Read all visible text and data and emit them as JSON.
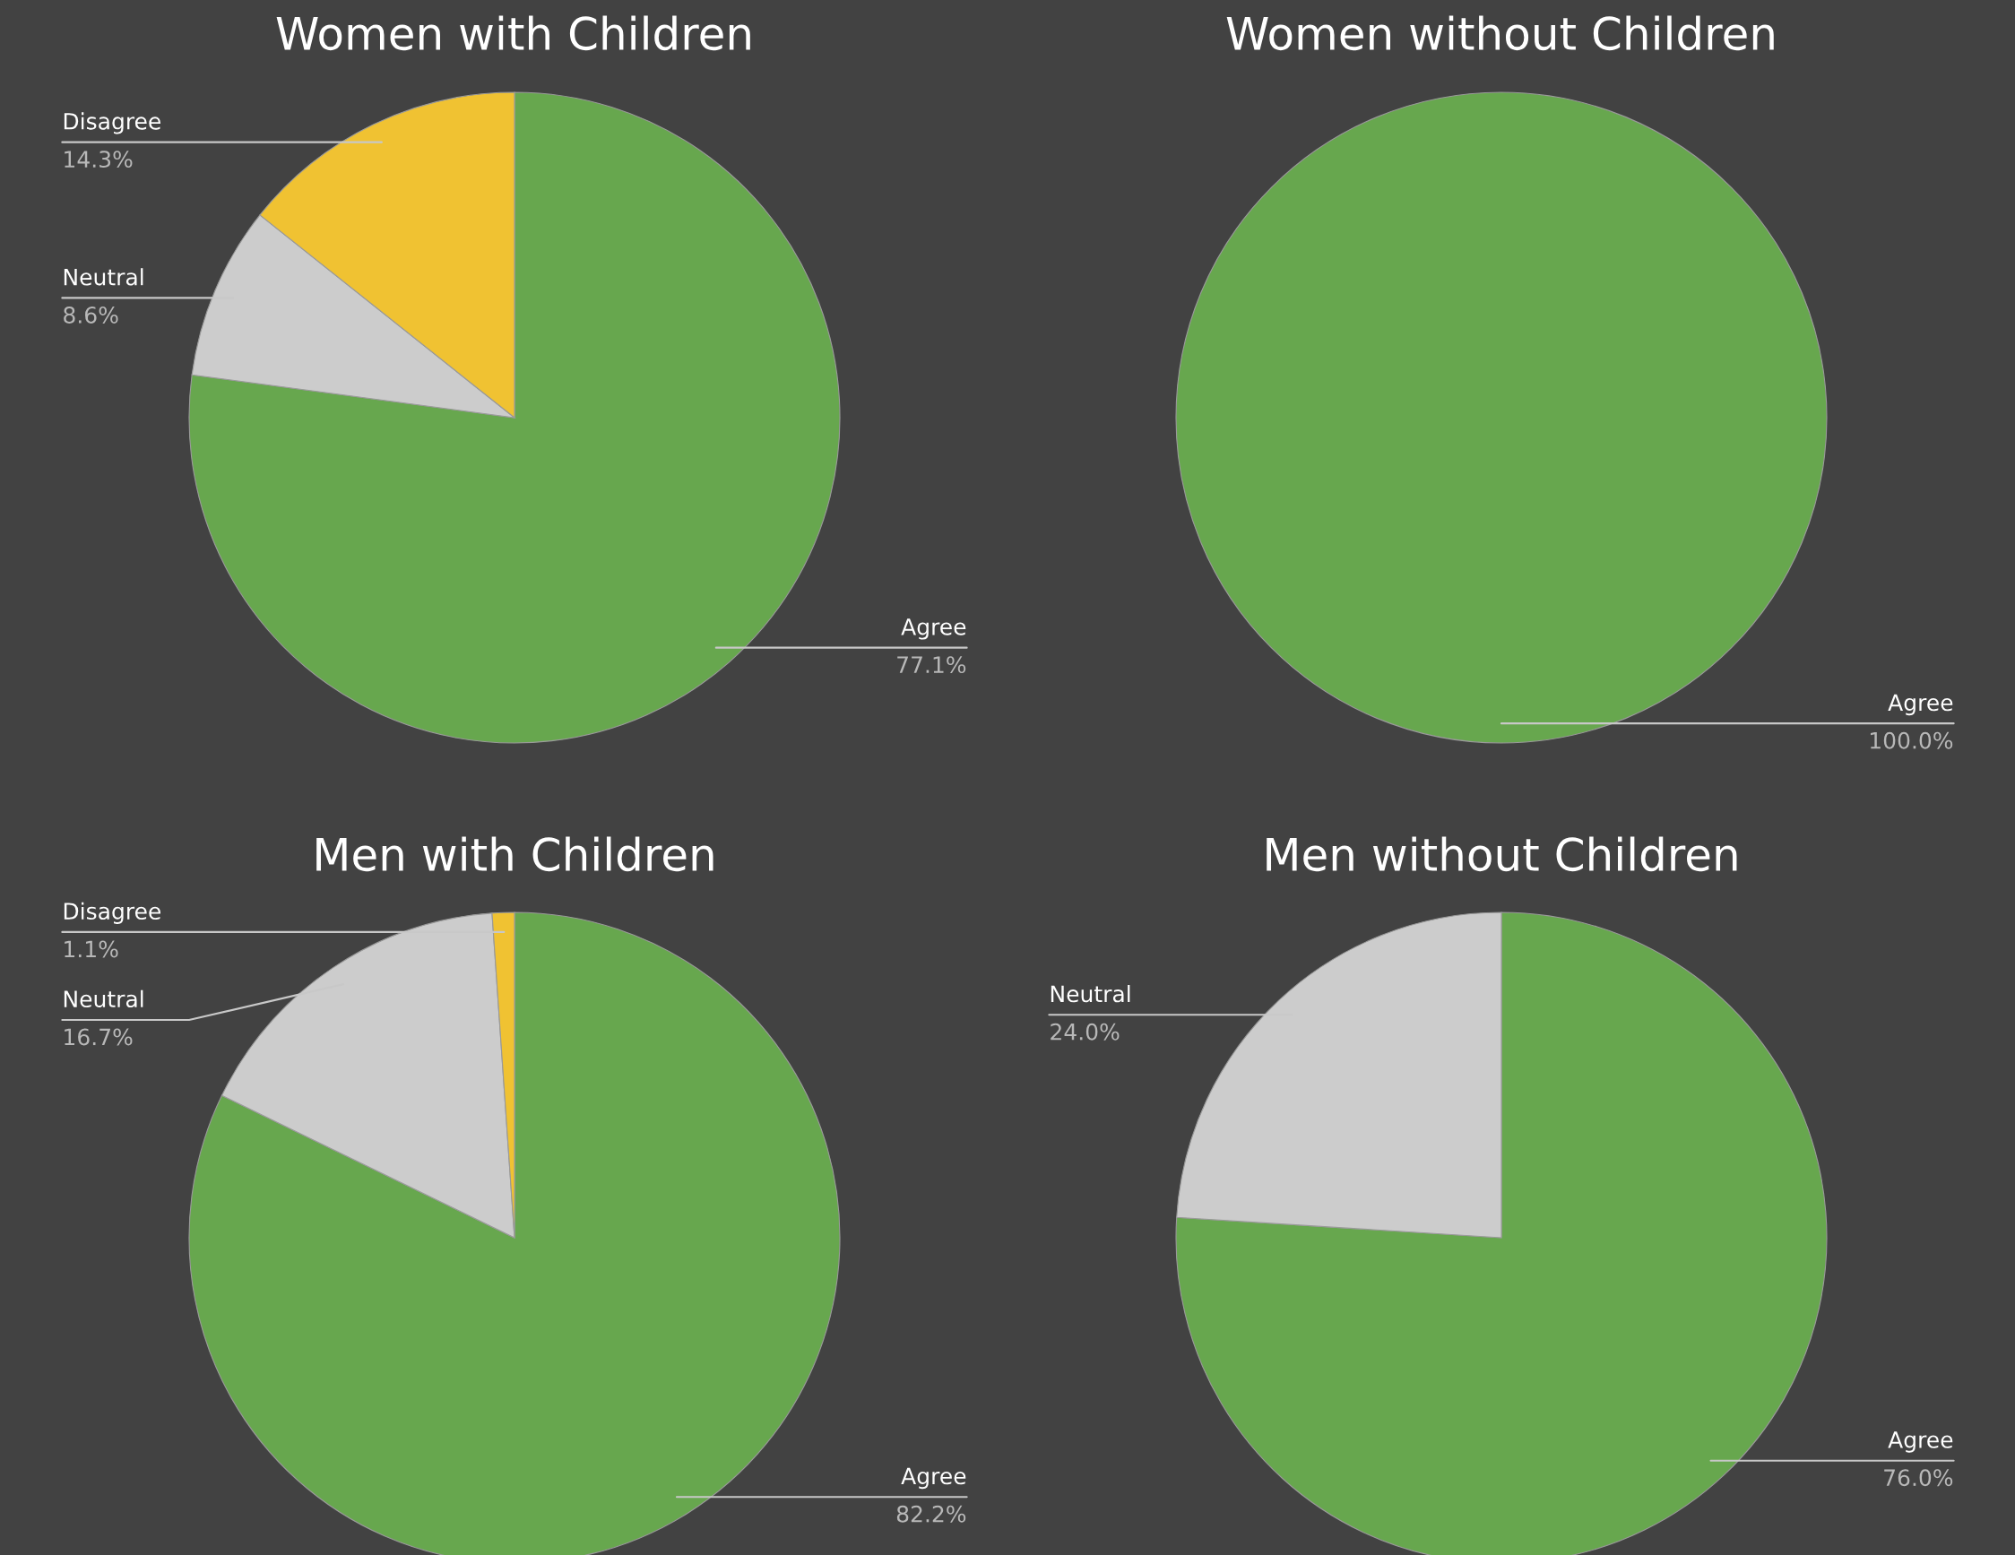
{
  "chart_data": [
    {
      "type": "pie",
      "title": "Women with Children",
      "categories": [
        "Agree",
        "Neutral",
        "Disagree"
      ],
      "values": [
        77.1,
        8.6,
        14.3
      ],
      "colors": [
        "#67a74e",
        "#cccccc",
        "#f0c232"
      ],
      "value_labels": [
        "77.1%",
        "8.6%",
        "14.3%"
      ]
    },
    {
      "type": "pie",
      "title": "Women without Children",
      "categories": [
        "Agree"
      ],
      "values": [
        100.0
      ],
      "colors": [
        "#67a74e"
      ],
      "value_labels": [
        "100.0%"
      ]
    },
    {
      "type": "pie",
      "title": "Men with Children",
      "categories": [
        "Agree",
        "Neutral",
        "Disagree"
      ],
      "values": [
        82.2,
        16.7,
        1.1
      ],
      "colors": [
        "#67a74e",
        "#cccccc",
        "#f0c232"
      ],
      "value_labels": [
        "82.2%",
        "16.7%",
        "1.1%"
      ]
    },
    {
      "type": "pie",
      "title": "Men without Children",
      "categories": [
        "Agree",
        "Neutral"
      ],
      "values": [
        76.0,
        24.0
      ],
      "colors": [
        "#67a74e",
        "#cccccc"
      ],
      "value_labels": [
        "76.0%",
        "24.0%"
      ]
    }
  ]
}
